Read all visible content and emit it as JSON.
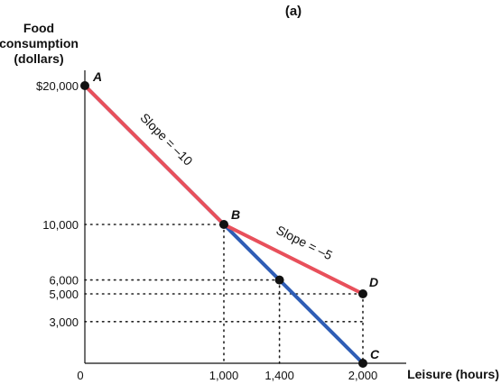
{
  "chart_data": {
    "type": "line",
    "title": "(a)",
    "ylabel_lines": [
      "Food",
      "consumption",
      "(dollars)"
    ],
    "xlabel": "Leisure (hours)",
    "xlim": [
      0,
      2000
    ],
    "ylim": [
      0,
      20000
    ],
    "x_origin_label": "0",
    "x_ticks": [
      {
        "value": 1000,
        "label": "1,000"
      },
      {
        "value": 1400,
        "label": "1,400"
      },
      {
        "value": 2000,
        "label": "2,000"
      }
    ],
    "y_ticks": [
      {
        "value": 20000,
        "label": "$20,000"
      },
      {
        "value": 10000,
        "label": "10,000"
      },
      {
        "value": 6000,
        "label": "6,000"
      },
      {
        "value": 5000,
        "label": "5,000"
      },
      {
        "value": 3000,
        "label": "3,000"
      }
    ],
    "series": [
      {
        "color": "#2f5db5",
        "points": [
          [
            0,
            20000
          ],
          [
            2000,
            0
          ]
        ]
      },
      {
        "color": "#e8505b",
        "points": [
          [
            0,
            20000
          ],
          [
            1000,
            10000
          ],
          [
            2000,
            5000
          ]
        ]
      }
    ],
    "points": [
      {
        "label": "A",
        "x": 0,
        "y": 20000
      },
      {
        "label": "B",
        "x": 1000,
        "y": 10000
      },
      {
        "label": "",
        "x": 1400,
        "y": 6000
      },
      {
        "label": "D",
        "x": 2000,
        "y": 5000
      },
      {
        "label": "C",
        "x": 2000,
        "y": 0
      }
    ],
    "guides": [
      {
        "x": 1000,
        "y": 10000
      },
      {
        "x": 1400,
        "y": 6000
      },
      {
        "x": 2000,
        "y": 5000
      },
      {
        "x": 2000,
        "y": 3000
      }
    ],
    "annotations": [
      {
        "text": "Slope = –10",
        "segment": [
          [
            0,
            20000
          ],
          [
            1000,
            10000
          ]
        ]
      },
      {
        "text": "Slope = –5",
        "segment": [
          [
            1000,
            10000
          ],
          [
            2000,
            5000
          ]
        ]
      }
    ]
  }
}
